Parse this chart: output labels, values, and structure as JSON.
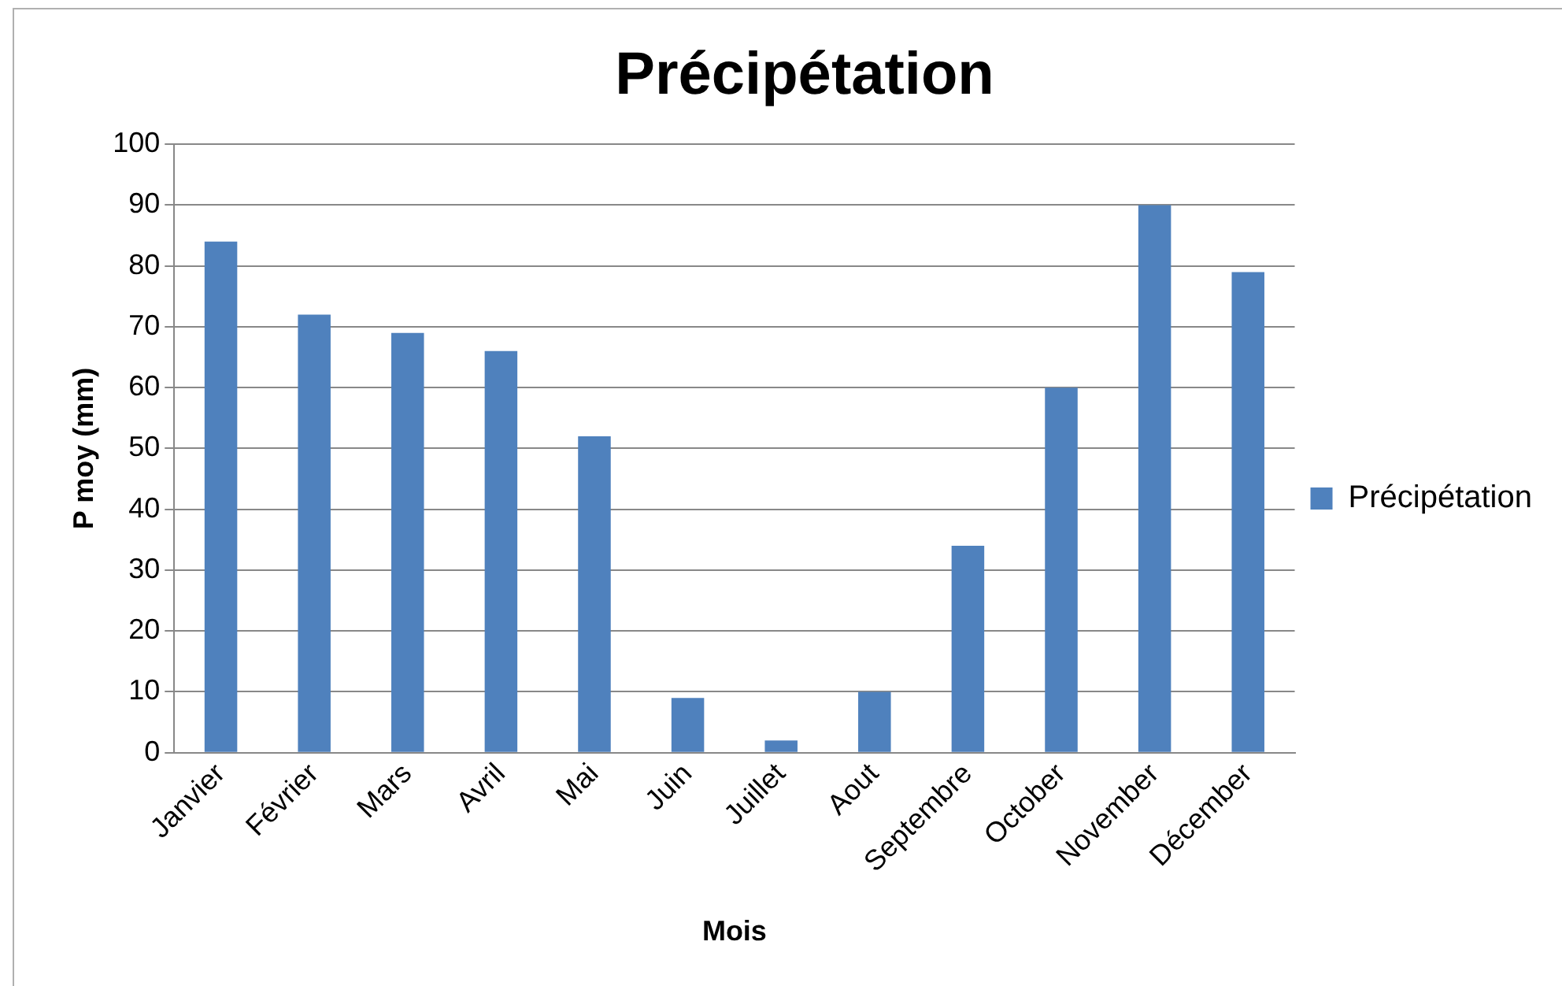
{
  "chart_data": {
    "type": "bar",
    "title": "Précipétation",
    "xlabel": "Mois",
    "ylabel": "P moy (mm)",
    "categories": [
      "Janvier",
      "Février",
      "Mars",
      "Avril",
      "Mai",
      "Juin",
      "Juillet",
      "Aout",
      "Septembre",
      "October",
      "November",
      "Décember"
    ],
    "series": [
      {
        "name": "Précipétation",
        "color": "#4f81bd",
        "values": [
          84,
          72,
          69,
          66,
          52,
          9,
          2,
          10,
          34,
          60,
          90,
          79
        ]
      }
    ],
    "ylim": [
      0,
      100
    ],
    "yticks": [
      0,
      10,
      20,
      30,
      40,
      50,
      60,
      70,
      80,
      90,
      100
    ],
    "grid": "y",
    "legend": "right"
  }
}
